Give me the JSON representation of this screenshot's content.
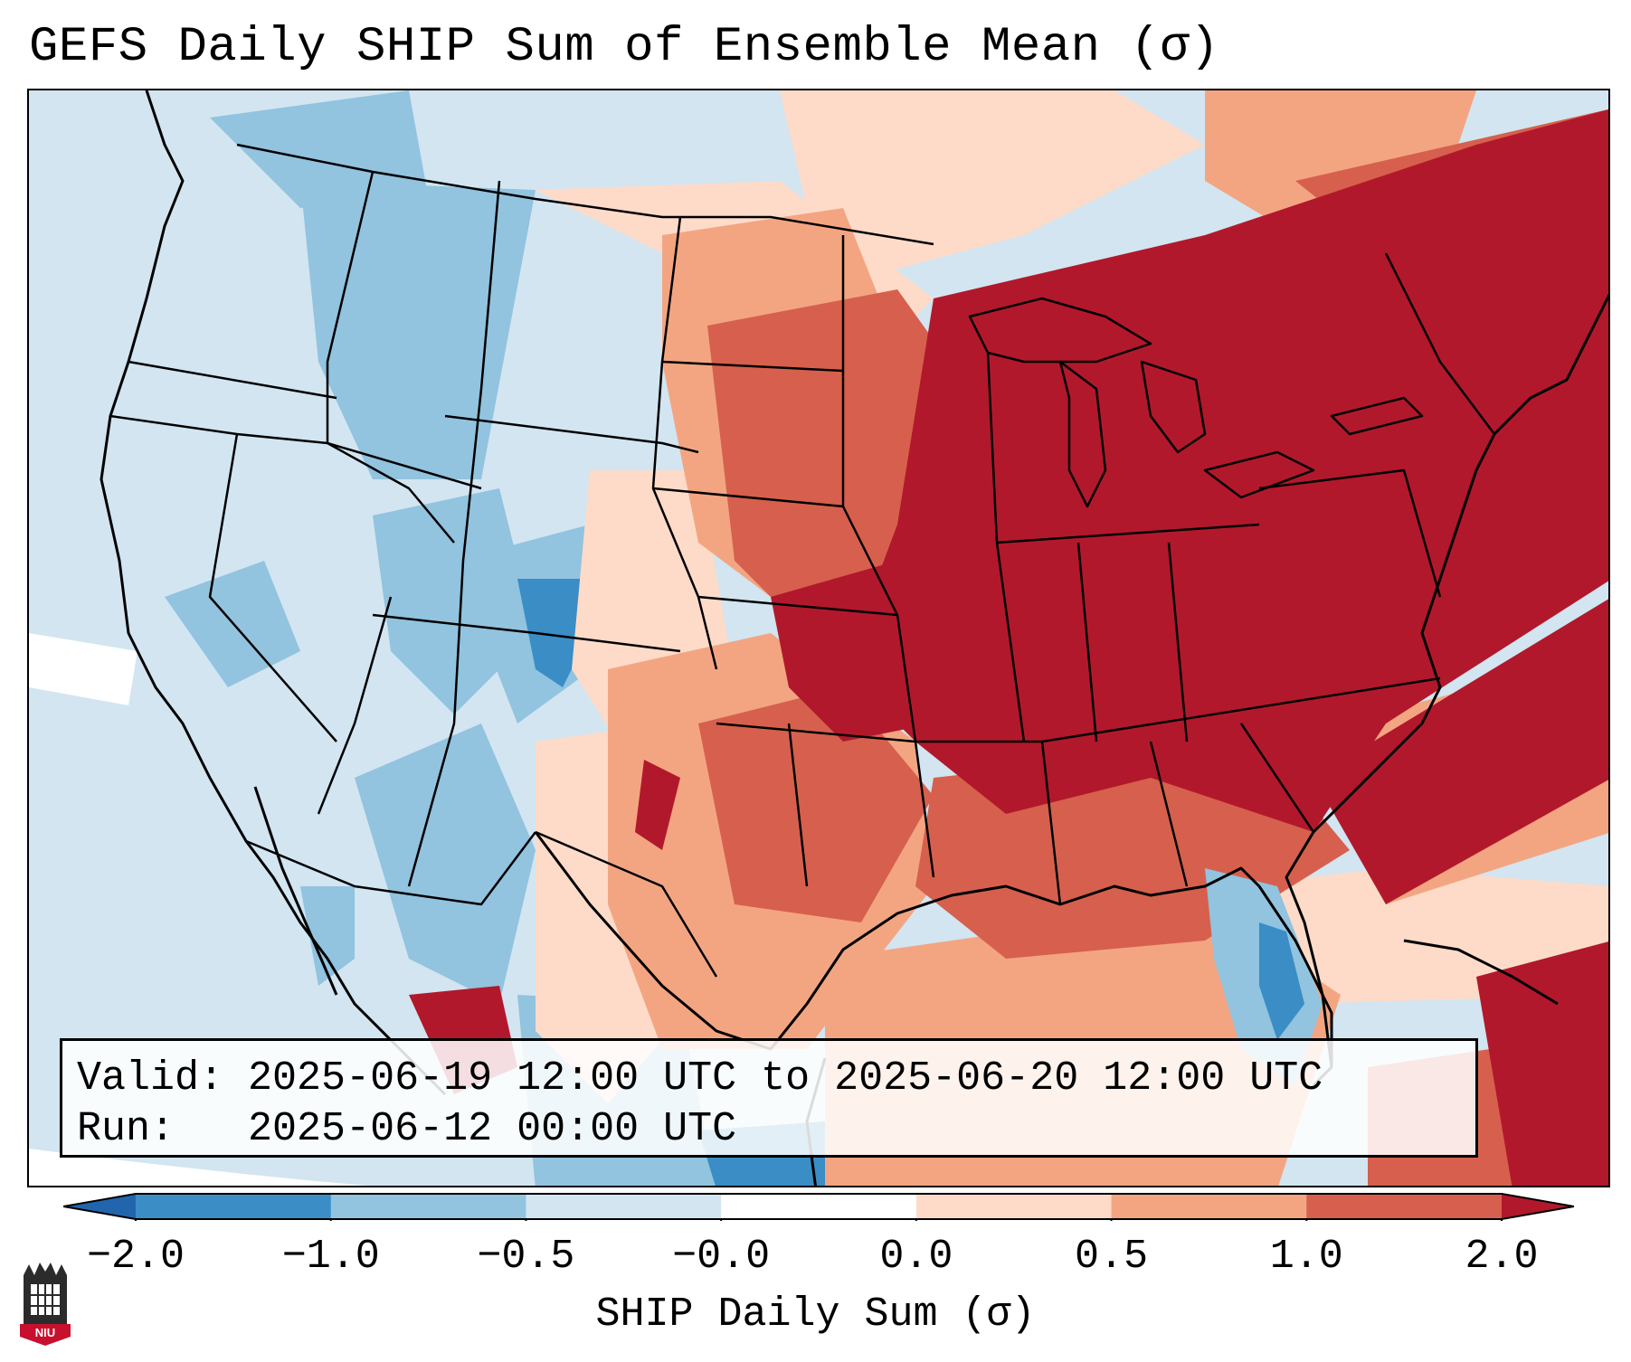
{
  "title": "GEFS Daily SHIP Sum of Ensemble Mean (σ)",
  "info": {
    "valid_label": "Valid:",
    "valid_value": "2025-06-19 12:00 UTC to 2025-06-20 12:00 UTC",
    "run_label": "Run:",
    "run_value": "2025-06-12 00:00 UTC"
  },
  "colorbar": {
    "label": "SHIP Daily Sum (σ)",
    "ticks": [
      "−2.0",
      "−1.0",
      "−0.5",
      "−0.0",
      "0.0",
      "0.5",
      "1.0",
      "2.0"
    ],
    "bins": [
      {
        "from": -2.0,
        "to": -1.0,
        "color": "#3a8dc5"
      },
      {
        "from": -1.0,
        "to": -0.5,
        "color": "#92c3df"
      },
      {
        "from": -0.5,
        "to": -0.0,
        "color": "#d2e5f1"
      },
      {
        "from": -0.0,
        "to": 0.0,
        "color": "#ffffff"
      },
      {
        "from": 0.0,
        "to": 0.5,
        "color": "#fddbc8"
      },
      {
        "from": 0.5,
        "to": 1.0,
        "color": "#f3a582"
      },
      {
        "from": 1.0,
        "to": 2.0,
        "color": "#d6604d"
      }
    ],
    "under_color": "#2166ac",
    "over_color": "#b2182b"
  },
  "logo": {
    "text": "NIU",
    "color": "#c8102e"
  }
}
